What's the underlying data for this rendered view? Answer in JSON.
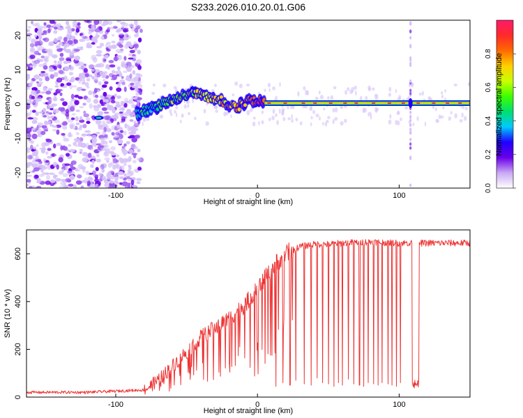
{
  "figure": {
    "title": "S233.2026.010.20.01.G06"
  },
  "chart_data": [
    {
      "type": "heatmap",
      "name": "spectrogram",
      "xlabel": "Height of straight line (km)",
      "ylabel": "Frequency (Hz)",
      "xlim": [
        -163,
        150
      ],
      "ylim": [
        -24.5,
        24.5
      ],
      "xticks": [
        -100,
        0,
        100
      ],
      "yticks": [
        -20,
        -10,
        0,
        10,
        20
      ],
      "colorbar": {
        "label": "Normalized spectral amplitude",
        "range": [
          0,
          1
        ],
        "ticks": [
          0.0,
          0.2,
          0.4,
          0.6,
          0.8
        ],
        "colormap": [
          "#ffffff",
          "#c9a8f4",
          "#6a00e8",
          "#1f00ff",
          "#00c8ff",
          "#00e070",
          "#3cff00",
          "#c8ff00",
          "#ffd000",
          "#ff6a00",
          "#ff2a2a",
          "#ff1a6a"
        ]
      },
      "features": {
        "noise_region_end_km": -85,
        "rising_ridge": {
          "x": [
            -85,
            -75,
            -65,
            -55,
            -45,
            -35,
            -25,
            -15,
            -5,
            5
          ],
          "freq": [
            -2.5,
            -1.5,
            0.5,
            2.0,
            3.0,
            2.0,
            1.0,
            -1.0,
            1.5,
            0.5
          ]
        },
        "stable_line": {
          "x_start": 5,
          "x_end": 150,
          "freq": 0.3
        },
        "spike_column_km": 108,
        "isolated_blob": {
          "x": -112,
          "freq": -4
        }
      }
    },
    {
      "type": "line",
      "name": "snr",
      "xlabel": "Height of straight line (km)",
      "ylabel": "SNR (10 * v/v)",
      "xlim": [
        -163,
        150
      ],
      "ylim": [
        0,
        700
      ],
      "xticks": [
        -100,
        0,
        100
      ],
      "yticks": [
        0,
        200,
        400,
        600
      ],
      "color": "#ee3333",
      "trend": {
        "x": [
          -163,
          -120,
          -80,
          -70,
          -60,
          -50,
          -40,
          -30,
          -20,
          -10,
          0,
          10,
          20,
          30,
          40,
          50,
          60,
          80,
          100,
          150
        ],
        "y": [
          20,
          20,
          30,
          70,
          130,
          190,
          250,
          290,
          330,
          380,
          450,
          540,
          600,
          630,
          640,
          640,
          645,
          650,
          645,
          645
        ]
      },
      "dips": {
        "x": [
          13,
          18,
          23,
          27,
          33,
          38,
          42,
          46,
          50,
          54,
          57,
          60,
          64,
          68,
          72,
          75,
          78,
          82,
          85,
          88,
          92,
          95,
          98,
          101
        ],
        "y": [
          45,
          60,
          50,
          70,
          55,
          50,
          80,
          60,
          55,
          45,
          60,
          50,
          75,
          55,
          50,
          45,
          60,
          55,
          50,
          60,
          55,
          50,
          45,
          60
        ]
      },
      "dropout": {
        "x_start": 109,
        "x_end": 114,
        "y": 55
      }
    }
  ]
}
